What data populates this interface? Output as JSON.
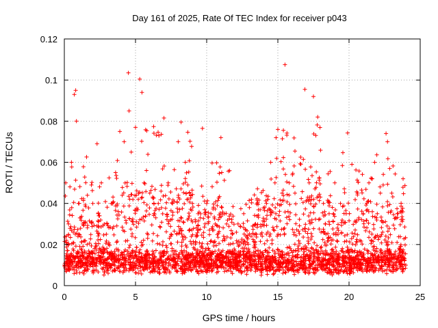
{
  "chart_data": {
    "type": "scatter",
    "title": "Day 161 of 2025, Rate Of TEC Index for receiver p043",
    "xlabel": "GPS time / hours",
    "ylabel": "ROTI / TECUs",
    "xlim": [
      0,
      25
    ],
    "ylim": [
      0,
      0.12
    ],
    "xticks": [
      0,
      5,
      10,
      15,
      20,
      25
    ],
    "yticks": [
      0,
      0.02,
      0.04,
      0.06,
      0.08,
      0.1,
      0.12
    ],
    "xtick_labels": [
      "0",
      "5",
      "10",
      "15",
      "20",
      "25"
    ],
    "ytick_labels": [
      "0",
      "0.02",
      "0.04",
      "0.06",
      "0.08",
      "0.1",
      "0.12"
    ],
    "grid": true,
    "marker": "+",
    "marker_color": "#ff0000",
    "data_x_range": [
      0,
      24
    ],
    "series": [
      {
        "name": "ROTI",
        "description_points": "dense cloud of thousands of points; representative sample listed",
        "x": [
          0.1,
          0.3,
          0.5,
          0.7,
          0.8,
          0.85,
          1.0,
          1.3,
          1.6,
          2.0,
          2.3,
          2.6,
          3.0,
          3.3,
          3.6,
          3.9,
          4.2,
          4.5,
          4.55,
          4.7,
          5.0,
          5.3,
          5.45,
          5.6,
          6.0,
          6.3,
          6.6,
          7.0,
          7.3,
          7.6,
          8.0,
          8.2,
          8.5,
          8.8,
          9.0,
          9.4,
          9.7,
          10.0,
          10.3,
          10.6,
          11.0,
          11.4,
          11.8,
          12.2,
          12.6,
          13.0,
          13.4,
          13.8,
          14.2,
          14.5,
          14.8,
          15.0,
          15.3,
          15.5,
          15.8,
          16.2,
          16.6,
          16.9,
          17.2,
          17.5,
          17.8,
          18.2,
          18.6,
          19.0,
          19.4,
          19.8,
          20.2,
          20.6,
          21.0,
          21.4,
          21.8,
          22.2,
          22.6,
          22.7,
          23.0,
          23.4,
          23.8
        ],
        "y": [
          0.05,
          0.03,
          0.06,
          0.093,
          0.095,
          0.08,
          0.04,
          0.03,
          0.02,
          0.04,
          0.069,
          0.05,
          0.03,
          0.04,
          0.055,
          0.075,
          0.07,
          0.1035,
          0.085,
          0.065,
          0.077,
          0.1005,
          0.094,
          0.05,
          0.045,
          0.035,
          0.04,
          0.0815,
          0.05,
          0.04,
          0.07,
          0.0795,
          0.06,
          0.045,
          0.04,
          0.035,
          0.0765,
          0.04,
          0.035,
          0.03,
          0.072,
          0.03,
          0.025,
          0.03,
          0.035,
          0.038,
          0.02,
          0.025,
          0.04,
          0.06,
          0.05,
          0.076,
          0.045,
          0.1075,
          0.05,
          0.045,
          0.0625,
          0.0955,
          0.05,
          0.092,
          0.082,
          0.04,
          0.035,
          0.05,
          0.04,
          0.035,
          0.059,
          0.045,
          0.035,
          0.05,
          0.06,
          0.045,
          0.074,
          0.07,
          0.045,
          0.035,
          0.052
        ]
      }
    ]
  }
}
